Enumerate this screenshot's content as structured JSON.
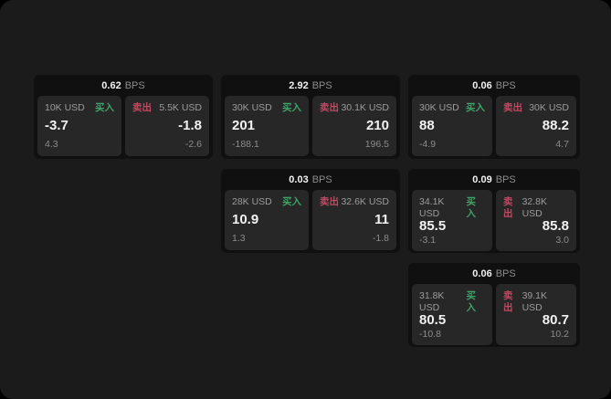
{
  "labels": {
    "bps": "BPS",
    "buy": "买入",
    "sell": "卖出"
  },
  "colors": {
    "buy": "#3fa368",
    "sell": "#bf4a62",
    "page-bg": "#1b1b1b",
    "card-bg": "#101010",
    "panel-bg": "#272727",
    "text-bright": "#f2f2f2",
    "text-muted": "#9c9c9c",
    "text-dim": "#8c8c8c"
  },
  "cards": [
    {
      "bps": "0.62",
      "buy": {
        "amount": "10K USD",
        "value": "-3.7",
        "sub": "4.3"
      },
      "sell": {
        "amount": "5.5K USD",
        "value": "-1.8",
        "sub": "-2.6"
      }
    },
    {
      "bps": "2.92",
      "buy": {
        "amount": "30K USD",
        "value": "201",
        "sub": "-188.1"
      },
      "sell": {
        "amount": "30.1K USD",
        "value": "210",
        "sub": "196.5"
      }
    },
    {
      "bps": "0.06",
      "buy": {
        "amount": "30K USD",
        "value": "88",
        "sub": "-4.9"
      },
      "sell": {
        "amount": "30K USD",
        "value": "88.2",
        "sub": "4.7"
      }
    },
    {
      "bps": "0.03",
      "buy": {
        "amount": "28K USD",
        "value": "10.9",
        "sub": "1.3"
      },
      "sell": {
        "amount": "32.6K USD",
        "value": "11",
        "sub": "-1.8"
      }
    },
    {
      "bps": "0.09",
      "buy": {
        "amount": "34.1K USD",
        "value": "85.5",
        "sub": "-3.1"
      },
      "sell": {
        "amount": "32.8K USD",
        "value": "85.8",
        "sub": "3.0"
      }
    },
    {
      "bps": "0.06",
      "buy": {
        "amount": "31.8K USD",
        "value": "80.5",
        "sub": "-10.8"
      },
      "sell": {
        "amount": "39.1K USD",
        "value": "80.7",
        "sub": "10.2"
      }
    }
  ]
}
